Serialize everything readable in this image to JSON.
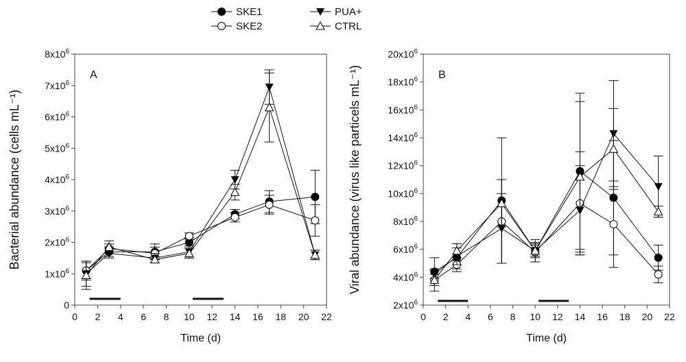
{
  "legend": [
    {
      "name": "SKE1",
      "marker": "filled-circle"
    },
    {
      "name": "SKE2",
      "marker": "open-circle"
    },
    {
      "name": "PUA+",
      "marker": "filled-down-triangle"
    },
    {
      "name": "CTRL",
      "marker": "open-up-triangle"
    }
  ],
  "chart_data": [
    {
      "type": "line",
      "panel_label": "A",
      "xlabel": "Time (d)",
      "ylabel": "Bacterial abundance (cells mL⁻¹)",
      "xlim": [
        0,
        22
      ],
      "ylim": [
        0,
        8000000
      ],
      "xticks": [
        0,
        2,
        4,
        6,
        8,
        10,
        12,
        14,
        16,
        18,
        20,
        22
      ],
      "yticks": [
        0,
        1000000,
        2000000,
        3000000,
        4000000,
        5000000,
        6000000,
        7000000,
        8000000
      ],
      "ytick_labels": [
        "0",
        "1x10⁶",
        "2x10⁶",
        "3x10⁶",
        "4x10⁶",
        "5x10⁶",
        "6x10⁶",
        "7x10⁶",
        "8x10⁶"
      ],
      "x": [
        1,
        3,
        7,
        10,
        14,
        17,
        21
      ],
      "treatment_periods": [
        [
          1.3,
          4
        ],
        [
          10.3,
          13
        ]
      ],
      "treatment_bar_level": 200000,
      "series": [
        {
          "name": "SKE1",
          "values": [
            1100000,
            1700000,
            1700000,
            2000000,
            2900000,
            3300000,
            3450000
          ],
          "errors": [
            300000,
            150000,
            250000,
            150000,
            150000,
            350000,
            850000
          ]
        },
        {
          "name": "SKE2",
          "values": [
            1100000,
            1800000,
            1650000,
            2200000,
            2800000,
            3200000,
            2700000
          ],
          "errors": [
            250000,
            150000,
            200000,
            100000,
            150000,
            300000,
            500000
          ]
        },
        {
          "name": "PUA+",
          "values": [
            1000000,
            1650000,
            1500000,
            1700000,
            4000000,
            6950000,
            1600000
          ],
          "errors": [
            400000,
            150000,
            150000,
            200000,
            300000,
            550000,
            150000
          ]
        },
        {
          "name": "CTRL",
          "values": [
            950000,
            1850000,
            1450000,
            1650000,
            3600000,
            6300000,
            1600000
          ],
          "errors": [
            450000,
            200000,
            100000,
            150000,
            250000,
            1100000,
            150000
          ]
        }
      ]
    },
    {
      "type": "line",
      "panel_label": "B",
      "xlabel": "Time (d)",
      "ylabel": "Viral abundance (virus like particels mL⁻¹)",
      "xlim": [
        0,
        22
      ],
      "ylim": [
        2000000,
        20000000
      ],
      "xticks": [
        0,
        2,
        4,
        6,
        8,
        10,
        12,
        14,
        16,
        18,
        20,
        22
      ],
      "yticks": [
        2000000,
        4000000,
        6000000,
        8000000,
        10000000,
        12000000,
        14000000,
        16000000,
        18000000,
        20000000
      ],
      "ytick_labels": [
        "2x10⁶",
        "4x10⁶",
        "6x10⁶",
        "8x10⁶",
        "10x10⁶",
        "12x10⁶",
        "14x10⁶",
        "16x10⁶",
        "18x10⁶",
        "20x10⁶"
      ],
      "x": [
        1,
        3,
        7,
        10,
        14,
        17,
        21
      ],
      "treatment_periods": [
        [
          1.3,
          4
        ],
        [
          10.3,
          13
        ]
      ],
      "treatment_bar_level": 2300000,
      "series": [
        {
          "name": "SKE1",
          "values": [
            4400000,
            5400000,
            9500000,
            5900000,
            11600000,
            9700000,
            5400000
          ],
          "errors": [
            1000000,
            1000000,
            4500000,
            800000,
            5600000,
            4100000,
            900000
          ]
        },
        {
          "name": "SKE2",
          "values": [
            3800000,
            4900000,
            8000000,
            5800000,
            9300000,
            7800000,
            4200000
          ],
          "errors": [
            800000,
            300000,
            3000000,
            700000,
            3700000,
            3100000,
            600000
          ]
        },
        {
          "name": "PUA+",
          "values": [
            4200000,
            5500000,
            7500000,
            5900000,
            8800000,
            14300000,
            10500000
          ],
          "errors": [
            300000,
            600000,
            2500000,
            400000,
            3200000,
            3800000,
            2200000
          ]
        },
        {
          "name": "CTRL",
          "values": [
            3800000,
            5900000,
            9300000,
            5900000,
            11200000,
            13200000,
            8700000
          ],
          "errors": [
            400000,
            500000,
            1700000,
            500000,
            5400000,
            2900000,
            400000
          ]
        }
      ]
    }
  ]
}
